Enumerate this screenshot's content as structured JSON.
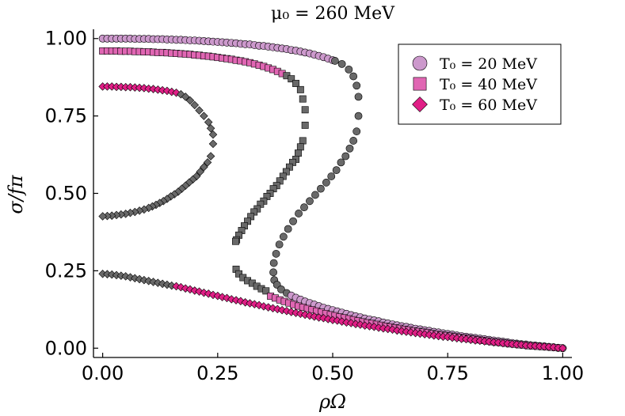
{
  "chart_data": {
    "type": "scatter",
    "title": "μ₀ = 260 MeV",
    "xlabel": "ρΩ",
    "ylabel": "σ/fπ",
    "xlim": [
      -0.02,
      1.02
    ],
    "ylim": [
      -0.03,
      1.03
    ],
    "x_ticks": [
      0.0,
      0.25,
      0.5,
      0.75,
      1.0
    ],
    "x_tick_labels": [
      "0.00",
      "0.25",
      "0.50",
      "0.75",
      "1.00"
    ],
    "y_ticks": [
      0.0,
      0.25,
      0.5,
      0.75,
      1.0
    ],
    "y_tick_labels": [
      "0.00",
      "0.25",
      "0.50",
      "0.75",
      "1.00"
    ],
    "grid": false,
    "legend_position": "top-right",
    "unstable_color": "#696969",
    "series": [
      {
        "name": "T₀ = 20 MeV",
        "marker": "circle",
        "color": "#cc99cc",
        "stable_upper": {
          "x": [
            0.0,
            0.01,
            0.02,
            0.03,
            0.04,
            0.05,
            0.06,
            0.07,
            0.08,
            0.09,
            0.1,
            0.11,
            0.12,
            0.13,
            0.14,
            0.15,
            0.16,
            0.17,
            0.18,
            0.19,
            0.2,
            0.21,
            0.22,
            0.23,
            0.24,
            0.25,
            0.26,
            0.27,
            0.28,
            0.29,
            0.3,
            0.31,
            0.32,
            0.33,
            0.34,
            0.35,
            0.36,
            0.37,
            0.38,
            0.39,
            0.4,
            0.41,
            0.42,
            0.43,
            0.44,
            0.45,
            0.46,
            0.47,
            0.48,
            0.49,
            0.5
          ],
          "y": [
            1.0,
            1.0,
            1.0,
            1.0,
            1.0,
            1.0,
            1.0,
            0.999,
            0.999,
            0.999,
            0.999,
            0.998,
            0.998,
            0.998,
            0.997,
            0.997,
            0.996,
            0.996,
            0.995,
            0.994,
            0.994,
            0.993,
            0.992,
            0.991,
            0.99,
            0.989,
            0.988,
            0.987,
            0.986,
            0.985,
            0.983,
            0.982,
            0.981,
            0.979,
            0.977,
            0.976,
            0.974,
            0.972,
            0.97,
            0.968,
            0.966,
            0.963,
            0.961,
            0.958,
            0.955,
            0.952,
            0.948,
            0.944,
            0.94,
            0.935,
            0.93
          ]
        },
        "unstable": {
          "x": [
            0.505,
            0.52,
            0.535,
            0.545,
            0.552,
            0.556,
            0.556,
            0.552,
            0.545,
            0.537,
            0.528,
            0.518,
            0.508,
            0.497,
            0.486,
            0.474,
            0.462,
            0.45,
            0.438,
            0.426,
            0.414,
            0.403,
            0.393,
            0.384,
            0.377,
            0.372,
            0.371,
            0.373,
            0.379,
            0.388,
            0.4
          ],
          "y": [
            0.928,
            0.918,
            0.9,
            0.878,
            0.848,
            0.812,
            0.75,
            0.7,
            0.67,
            0.645,
            0.62,
            0.6,
            0.575,
            0.555,
            0.535,
            0.515,
            0.495,
            0.475,
            0.455,
            0.435,
            0.41,
            0.385,
            0.36,
            0.335,
            0.305,
            0.275,
            0.245,
            0.22,
            0.205,
            0.19,
            0.178
          ]
        },
        "stable_lower": {
          "x": [
            0.41,
            0.42,
            0.43,
            0.44,
            0.45,
            0.46,
            0.47,
            0.48,
            0.49,
            0.5,
            0.51,
            0.52,
            0.53,
            0.54,
            0.55,
            0.56,
            0.57,
            0.58,
            0.59,
            0.6,
            0.61,
            0.62,
            0.63,
            0.64,
            0.65,
            0.66,
            0.67,
            0.68,
            0.69,
            0.7,
            0.71,
            0.72,
            0.73,
            0.74,
            0.75,
            0.76,
            0.77,
            0.78,
            0.79,
            0.8,
            0.81,
            0.82,
            0.83,
            0.84,
            0.85,
            0.86,
            0.87,
            0.88,
            0.89,
            0.9,
            0.91,
            0.92,
            0.93,
            0.94,
            0.95,
            0.96,
            0.97,
            0.98,
            0.99,
            1.0
          ],
          "y": [
            0.17,
            0.163,
            0.157,
            0.151,
            0.146,
            0.141,
            0.136,
            0.131,
            0.127,
            0.123,
            0.119,
            0.115,
            0.111,
            0.107,
            0.103,
            0.1,
            0.096,
            0.093,
            0.09,
            0.087,
            0.083,
            0.08,
            0.077,
            0.074,
            0.071,
            0.069,
            0.066,
            0.063,
            0.061,
            0.058,
            0.056,
            0.053,
            0.051,
            0.048,
            0.046,
            0.044,
            0.041,
            0.039,
            0.037,
            0.035,
            0.033,
            0.031,
            0.029,
            0.027,
            0.025,
            0.023,
            0.021,
            0.019,
            0.017,
            0.015,
            0.013,
            0.012,
            0.01,
            0.009,
            0.007,
            0.006,
            0.004,
            0.003,
            0.001,
            0.0
          ]
        }
      },
      {
        "name": "T₀ = 40 MeV",
        "marker": "square",
        "color": "#e066b3",
        "stable_upper": {
          "x": [
            0.0,
            0.01,
            0.02,
            0.03,
            0.04,
            0.05,
            0.06,
            0.07,
            0.08,
            0.09,
            0.1,
            0.11,
            0.12,
            0.13,
            0.14,
            0.15,
            0.16,
            0.17,
            0.18,
            0.19,
            0.2,
            0.21,
            0.22,
            0.23,
            0.24,
            0.25,
            0.26,
            0.27,
            0.28,
            0.29,
            0.3,
            0.31,
            0.32,
            0.33,
            0.34,
            0.35,
            0.36,
            0.37,
            0.38,
            0.39
          ],
          "y": [
            0.96,
            0.96,
            0.96,
            0.96,
            0.959,
            0.959,
            0.959,
            0.958,
            0.958,
            0.957,
            0.957,
            0.956,
            0.955,
            0.955,
            0.954,
            0.953,
            0.952,
            0.951,
            0.95,
            0.949,
            0.947,
            0.946,
            0.944,
            0.943,
            0.941,
            0.939,
            0.937,
            0.935,
            0.933,
            0.93,
            0.928,
            0.925,
            0.922,
            0.918,
            0.914,
            0.91,
            0.905,
            0.9,
            0.894,
            0.887
          ]
        },
        "unstable": {
          "x": [
            0.4,
            0.41,
            0.42,
            0.43,
            0.435,
            0.44,
            0.44,
            0.435,
            0.43,
            0.425,
            0.42,
            0.413,
            0.406,
            0.399,
            0.392,
            0.385,
            0.378,
            0.371,
            0.364,
            0.357,
            0.35,
            0.343,
            0.336,
            0.329,
            0.322,
            0.315,
            0.308,
            0.302,
            0.296,
            0.291,
            0.289,
            0.29,
            0.296,
            0.305,
            0.315,
            0.325,
            0.335,
            0.345,
            0.355
          ],
          "y": [
            0.88,
            0.87,
            0.855,
            0.835,
            0.805,
            0.77,
            0.72,
            0.67,
            0.65,
            0.63,
            0.61,
            0.6,
            0.585,
            0.57,
            0.555,
            0.54,
            0.525,
            0.515,
            0.5,
            0.49,
            0.475,
            0.465,
            0.45,
            0.44,
            0.425,
            0.41,
            0.395,
            0.38,
            0.365,
            0.35,
            0.345,
            0.255,
            0.24,
            0.228,
            0.218,
            0.21,
            0.2,
            0.192,
            0.185
          ]
        },
        "stable_lower": {
          "x": [
            0.365,
            0.375,
            0.385,
            0.395,
            0.405,
            0.415,
            0.425,
            0.435,
            0.445,
            0.455,
            0.465,
            0.475,
            0.485,
            0.495,
            0.505,
            0.515,
            0.525,
            0.535,
            0.545,
            0.555,
            0.565,
            0.575,
            0.585,
            0.595,
            0.605,
            0.615,
            0.625,
            0.635,
            0.645,
            0.655,
            0.665,
            0.675,
            0.685,
            0.695,
            0.705,
            0.715,
            0.725,
            0.735,
            0.745,
            0.755,
            0.765,
            0.775,
            0.785,
            0.795,
            0.805,
            0.815,
            0.825,
            0.835,
            0.845,
            0.855,
            0.865,
            0.875,
            0.885,
            0.895,
            0.905,
            0.915,
            0.925,
            0.935,
            0.945,
            0.955,
            0.965,
            0.975,
            0.985,
            0.995
          ],
          "y": [
            0.168,
            0.162,
            0.156,
            0.151,
            0.146,
            0.141,
            0.136,
            0.132,
            0.128,
            0.124,
            0.12,
            0.116,
            0.112,
            0.108,
            0.105,
            0.101,
            0.098,
            0.095,
            0.092,
            0.088,
            0.085,
            0.082,
            0.08,
            0.077,
            0.074,
            0.071,
            0.069,
            0.066,
            0.064,
            0.061,
            0.059,
            0.056,
            0.054,
            0.052,
            0.05,
            0.047,
            0.045,
            0.043,
            0.041,
            0.039,
            0.037,
            0.035,
            0.033,
            0.031,
            0.029,
            0.027,
            0.025,
            0.023,
            0.021,
            0.019,
            0.018,
            0.016,
            0.014,
            0.013,
            0.011,
            0.01,
            0.008,
            0.007,
            0.006,
            0.005,
            0.004,
            0.003,
            0.002,
            0.001
          ]
        }
      },
      {
        "name": "T₀ = 60 MeV",
        "marker": "diamond",
        "color": "#e01f86",
        "stable_upper": {
          "x": [
            0.0,
            0.01,
            0.02,
            0.03,
            0.04,
            0.05,
            0.06,
            0.07,
            0.08,
            0.09,
            0.1,
            0.11,
            0.12,
            0.13,
            0.14,
            0.15,
            0.16
          ],
          "y": [
            0.845,
            0.845,
            0.845,
            0.844,
            0.844,
            0.843,
            0.843,
            0.842,
            0.841,
            0.84,
            0.838,
            0.837,
            0.835,
            0.833,
            0.831,
            0.828,
            0.825
          ]
        },
        "unstable": {
          "x": [
            0.17,
            0.18,
            0.19,
            0.2,
            0.21,
            0.22,
            0.23,
            0.235,
            0.24,
            0.24,
            0.235,
            0.228,
            0.22,
            0.212,
            0.204,
            0.196,
            0.188,
            0.18,
            0.172,
            0.164,
            0.156,
            0.148,
            0.14,
            0.132,
            0.124,
            0.116,
            0.108,
            0.1,
            0.09,
            0.08,
            0.07,
            0.06,
            0.05,
            0.04,
            0.03,
            0.02,
            0.01,
            0.0,
            0.0,
            0.01,
            0.02,
            0.03,
            0.04,
            0.05,
            0.06,
            0.07,
            0.08,
            0.09,
            0.1,
            0.11,
            0.12,
            0.13,
            0.14,
            0.15
          ],
          "y": [
            0.82,
            0.812,
            0.8,
            0.785,
            0.768,
            0.75,
            0.73,
            0.71,
            0.69,
            0.66,
            0.62,
            0.6,
            0.585,
            0.57,
            0.555,
            0.545,
            0.535,
            0.525,
            0.515,
            0.505,
            0.497,
            0.49,
            0.482,
            0.475,
            0.469,
            0.463,
            0.458,
            0.453,
            0.448,
            0.444,
            0.44,
            0.437,
            0.434,
            0.432,
            0.43,
            0.428,
            0.427,
            0.426,
            0.24,
            0.239,
            0.238,
            0.236,
            0.234,
            0.232,
            0.229,
            0.226,
            0.223,
            0.22,
            0.217,
            0.214,
            0.211,
            0.208,
            0.205,
            0.202
          ]
        },
        "stable_lower": {
          "x": [
            0.16,
            0.17,
            0.18,
            0.19,
            0.2,
            0.21,
            0.22,
            0.23,
            0.24,
            0.25,
            0.26,
            0.27,
            0.28,
            0.29,
            0.3,
            0.31,
            0.32,
            0.33,
            0.34,
            0.35,
            0.36,
            0.37,
            0.38,
            0.39,
            0.4,
            0.41,
            0.42,
            0.43,
            0.44,
            0.45,
            0.46,
            0.47,
            0.48,
            0.49,
            0.5,
            0.51,
            0.52,
            0.53,
            0.54,
            0.55,
            0.56,
            0.57,
            0.58,
            0.59,
            0.6,
            0.61,
            0.62,
            0.63,
            0.64,
            0.65,
            0.66,
            0.67,
            0.68,
            0.69,
            0.7,
            0.71,
            0.72,
            0.73,
            0.74,
            0.75,
            0.76,
            0.77,
            0.78,
            0.79,
            0.8,
            0.81,
            0.82,
            0.83,
            0.84,
            0.85,
            0.86,
            0.87,
            0.88,
            0.89,
            0.9,
            0.91,
            0.92,
            0.93,
            0.94,
            0.95,
            0.96,
            0.97,
            0.98,
            0.99,
            1.0
          ],
          "y": [
            0.2,
            0.197,
            0.193,
            0.19,
            0.186,
            0.183,
            0.179,
            0.176,
            0.172,
            0.169,
            0.165,
            0.162,
            0.158,
            0.155,
            0.152,
            0.148,
            0.145,
            0.142,
            0.139,
            0.135,
            0.132,
            0.129,
            0.126,
            0.123,
            0.12,
            0.117,
            0.114,
            0.111,
            0.108,
            0.105,
            0.102,
            0.099,
            0.097,
            0.094,
            0.091,
            0.089,
            0.086,
            0.083,
            0.081,
            0.078,
            0.076,
            0.073,
            0.071,
            0.069,
            0.066,
            0.064,
            0.062,
            0.06,
            0.057,
            0.055,
            0.053,
            0.051,
            0.049,
            0.047,
            0.045,
            0.043,
            0.041,
            0.039,
            0.037,
            0.036,
            0.034,
            0.032,
            0.03,
            0.029,
            0.027,
            0.025,
            0.024,
            0.022,
            0.021,
            0.019,
            0.018,
            0.016,
            0.015,
            0.013,
            0.012,
            0.011,
            0.009,
            0.008,
            0.007,
            0.006,
            0.005,
            0.004,
            0.003,
            0.001,
            0.0
          ]
        }
      }
    ]
  }
}
